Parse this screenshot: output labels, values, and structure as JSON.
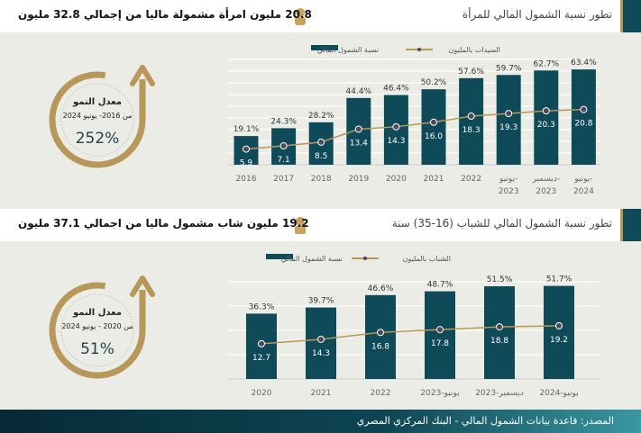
{
  "women": {
    "title": "تطور نسبة الشمول المالي للمرأة",
    "summary_value": "20.8",
    "summary_text": "مليون امرأة مشمولة ماليا من إجمالي 32.8 مليون",
    "growth_label": "معدل النمو",
    "growth_period": "من 2016- يونيو 2024",
    "growth_value": "252%"
  },
  "youth": {
    "title": "تطور نسبة الشمول المالي للشباب (16-35) سنة",
    "summary_value": "19.2",
    "summary_text": "مليون شاب مشمول ماليا من اجمالي 37.1 مليون",
    "growth_label": "معدل النمو",
    "growth_period": "من 2020 - يونيو 2024",
    "growth_value": "51%"
  },
  "footer": {
    "source": "المصدر: قاعدة بيانات الشمول المالي - البنك المركزي المصري"
  },
  "colors": {
    "bar": "#0f4a58",
    "line": "#b8975a",
    "point": "#4a4a5a",
    "bg": "#ecece7"
  },
  "chart_data": [
    {
      "type": "bar",
      "legend": [
        "نسبة الشمول المالي",
        "السيدات بالمليون"
      ],
      "categories": [
        [
          "2016"
        ],
        [
          "2017"
        ],
        [
          "2018"
        ],
        [
          "2019"
        ],
        [
          "2020"
        ],
        [
          "2021"
        ],
        [
          "2022"
        ],
        [
          "يونيو-",
          "2023"
        ],
        [
          "ديسمبر-",
          "2023"
        ],
        [
          "يونيو-",
          "2024"
        ]
      ],
      "series": [
        {
          "name": "نسبة الشمول المالي",
          "unit": "%",
          "values": [
            19.1,
            24.3,
            28.2,
            44.4,
            46.4,
            50.2,
            57.6,
            59.7,
            62.7,
            63.4
          ]
        },
        {
          "name": "السيدات بالمليون",
          "type": "line",
          "values": [
            5.9,
            7.1,
            8.5,
            13.4,
            14.3,
            16.0,
            18.3,
            19.3,
            20.3,
            20.8
          ]
        }
      ]
    },
    {
      "type": "bar",
      "legend": [
        "نسبة الشمول المالي",
        "الشباب بالمليون"
      ],
      "categories": [
        [
          "2020"
        ],
        [
          "2021"
        ],
        [
          "2022"
        ],
        [
          "يونيو-2023"
        ],
        [
          "ديسمبر-2023"
        ],
        [
          "يونيو-2024"
        ]
      ],
      "series": [
        {
          "name": "نسبة الشمول المالي",
          "unit": "%",
          "values": [
            36.3,
            39.7,
            46.6,
            48.7,
            51.5,
            51.7
          ]
        },
        {
          "name": "الشباب بالمليون",
          "type": "line",
          "values": [
            12.7,
            14.3,
            16.8,
            17.8,
            18.8,
            19.2
          ]
        }
      ]
    }
  ]
}
